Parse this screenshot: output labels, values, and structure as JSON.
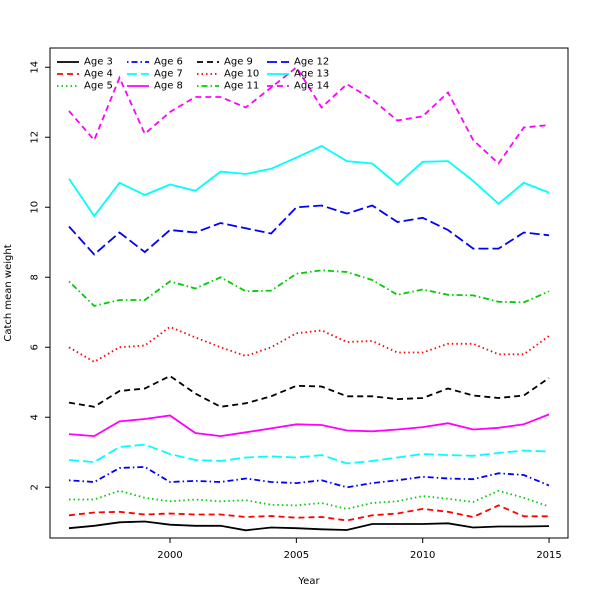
{
  "chart_data": {
    "type": "line",
    "title": "",
    "xlabel": "Year",
    "ylabel": "Catch mean weight",
    "x": [
      1996,
      1997,
      1998,
      1999,
      2000,
      2001,
      2002,
      2003,
      2004,
      2005,
      2006,
      2007,
      2008,
      2009,
      2010,
      2011,
      2012,
      2013,
      2014,
      2015
    ],
    "xticks": [
      2000,
      2005,
      2010,
      2015
    ],
    "yticks": [
      2,
      4,
      6,
      8,
      10,
      12,
      14
    ],
    "xlim": [
      1995.25,
      2015.75
    ],
    "ylim": [
      0.55,
      14.55
    ],
    "grid": false,
    "legend_position": "top-left",
    "series": [
      {
        "name": "Age 3",
        "color": "#000000",
        "dash": "solid",
        "values": [
          0.83,
          0.9,
          1.0,
          1.02,
          0.93,
          0.9,
          0.9,
          0.77,
          0.85,
          0.83,
          0.8,
          0.78,
          0.95,
          0.95,
          0.95,
          0.97,
          0.85,
          0.88,
          0.88,
          0.89
        ]
      },
      {
        "name": "Age 4",
        "color": "#ff0000",
        "dash": "dashed",
        "values": [
          1.2,
          1.28,
          1.3,
          1.22,
          1.25,
          1.22,
          1.22,
          1.15,
          1.18,
          1.13,
          1.15,
          1.05,
          1.2,
          1.25,
          1.38,
          1.3,
          1.15,
          1.48,
          1.17,
          1.17
        ]
      },
      {
        "name": "Age 5",
        "color": "#00cd00",
        "dash": "dotted",
        "values": [
          1.65,
          1.65,
          1.9,
          1.7,
          1.6,
          1.65,
          1.6,
          1.63,
          1.5,
          1.48,
          1.55,
          1.38,
          1.55,
          1.6,
          1.75,
          1.67,
          1.58,
          1.9,
          1.7,
          1.45
        ]
      },
      {
        "name": "Age 6",
        "color": "#0000ff",
        "dash": "dotdash",
        "values": [
          2.2,
          2.15,
          2.55,
          2.58,
          2.15,
          2.18,
          2.15,
          2.25,
          2.15,
          2.12,
          2.2,
          2.0,
          2.12,
          2.2,
          2.3,
          2.25,
          2.23,
          2.4,
          2.35,
          2.05
        ]
      },
      {
        "name": "Age 7",
        "color": "#00ffff",
        "dash": "longdash",
        "values": [
          2.78,
          2.72,
          3.15,
          3.22,
          2.95,
          2.78,
          2.75,
          2.85,
          2.88,
          2.85,
          2.92,
          2.68,
          2.75,
          2.85,
          2.95,
          2.92,
          2.9,
          2.98,
          3.05,
          3.02
        ]
      },
      {
        "name": "Age 8",
        "color": "#ff00ff",
        "dash": "solid",
        "values": [
          3.52,
          3.46,
          3.88,
          3.95,
          4.05,
          3.55,
          3.46,
          3.57,
          3.68,
          3.8,
          3.78,
          3.62,
          3.6,
          3.65,
          3.72,
          3.83,
          3.65,
          3.7,
          3.8,
          4.08
        ]
      },
      {
        "name": "Age 9",
        "color": "#000000",
        "dash": "dashed",
        "values": [
          4.42,
          4.3,
          4.75,
          4.82,
          5.18,
          4.68,
          4.3,
          4.4,
          4.6,
          4.9,
          4.88,
          4.6,
          4.6,
          4.52,
          4.55,
          4.82,
          4.62,
          4.55,
          4.62,
          5.12
        ]
      },
      {
        "name": "Age 10",
        "color": "#ff0000",
        "dash": "dotted",
        "values": [
          6.0,
          5.58,
          6.0,
          6.05,
          6.58,
          6.28,
          6.0,
          5.75,
          6.0,
          6.4,
          6.48,
          6.15,
          6.18,
          5.85,
          5.85,
          6.1,
          6.1,
          5.8,
          5.8,
          6.32
        ]
      },
      {
        "name": "Age 11",
        "color": "#00cd00",
        "dash": "dotdash",
        "values": [
          7.88,
          7.18,
          7.35,
          7.35,
          7.88,
          7.68,
          8.0,
          7.6,
          7.62,
          8.1,
          8.2,
          8.15,
          7.92,
          7.5,
          7.65,
          7.5,
          7.48,
          7.3,
          7.28,
          7.6
        ]
      },
      {
        "name": "Age 12",
        "color": "#0000ff",
        "dash": "longdash",
        "values": [
          9.45,
          8.65,
          9.28,
          8.72,
          9.35,
          9.28,
          9.55,
          9.4,
          9.25,
          10.0,
          10.05,
          9.82,
          10.05,
          9.58,
          9.7,
          9.35,
          8.82,
          8.82,
          9.28,
          9.2
        ]
      },
      {
        "name": "Age 13",
        "color": "#00ffff",
        "dash": "solid",
        "values": [
          10.82,
          9.75,
          10.7,
          10.35,
          10.65,
          10.47,
          11.02,
          10.95,
          11.1,
          11.42,
          11.75,
          11.32,
          11.25,
          10.65,
          11.3,
          11.32,
          10.75,
          10.1,
          10.7,
          10.42
        ]
      },
      {
        "name": "Age 14",
        "color": "#ff00ff",
        "dash": "dashed",
        "values": [
          12.75,
          11.92,
          13.7,
          12.1,
          12.72,
          13.15,
          13.15,
          12.85,
          13.42,
          14.0,
          12.85,
          13.52,
          13.08,
          12.48,
          12.6,
          13.28,
          11.92,
          11.25,
          12.28,
          12.35
        ]
      }
    ]
  }
}
